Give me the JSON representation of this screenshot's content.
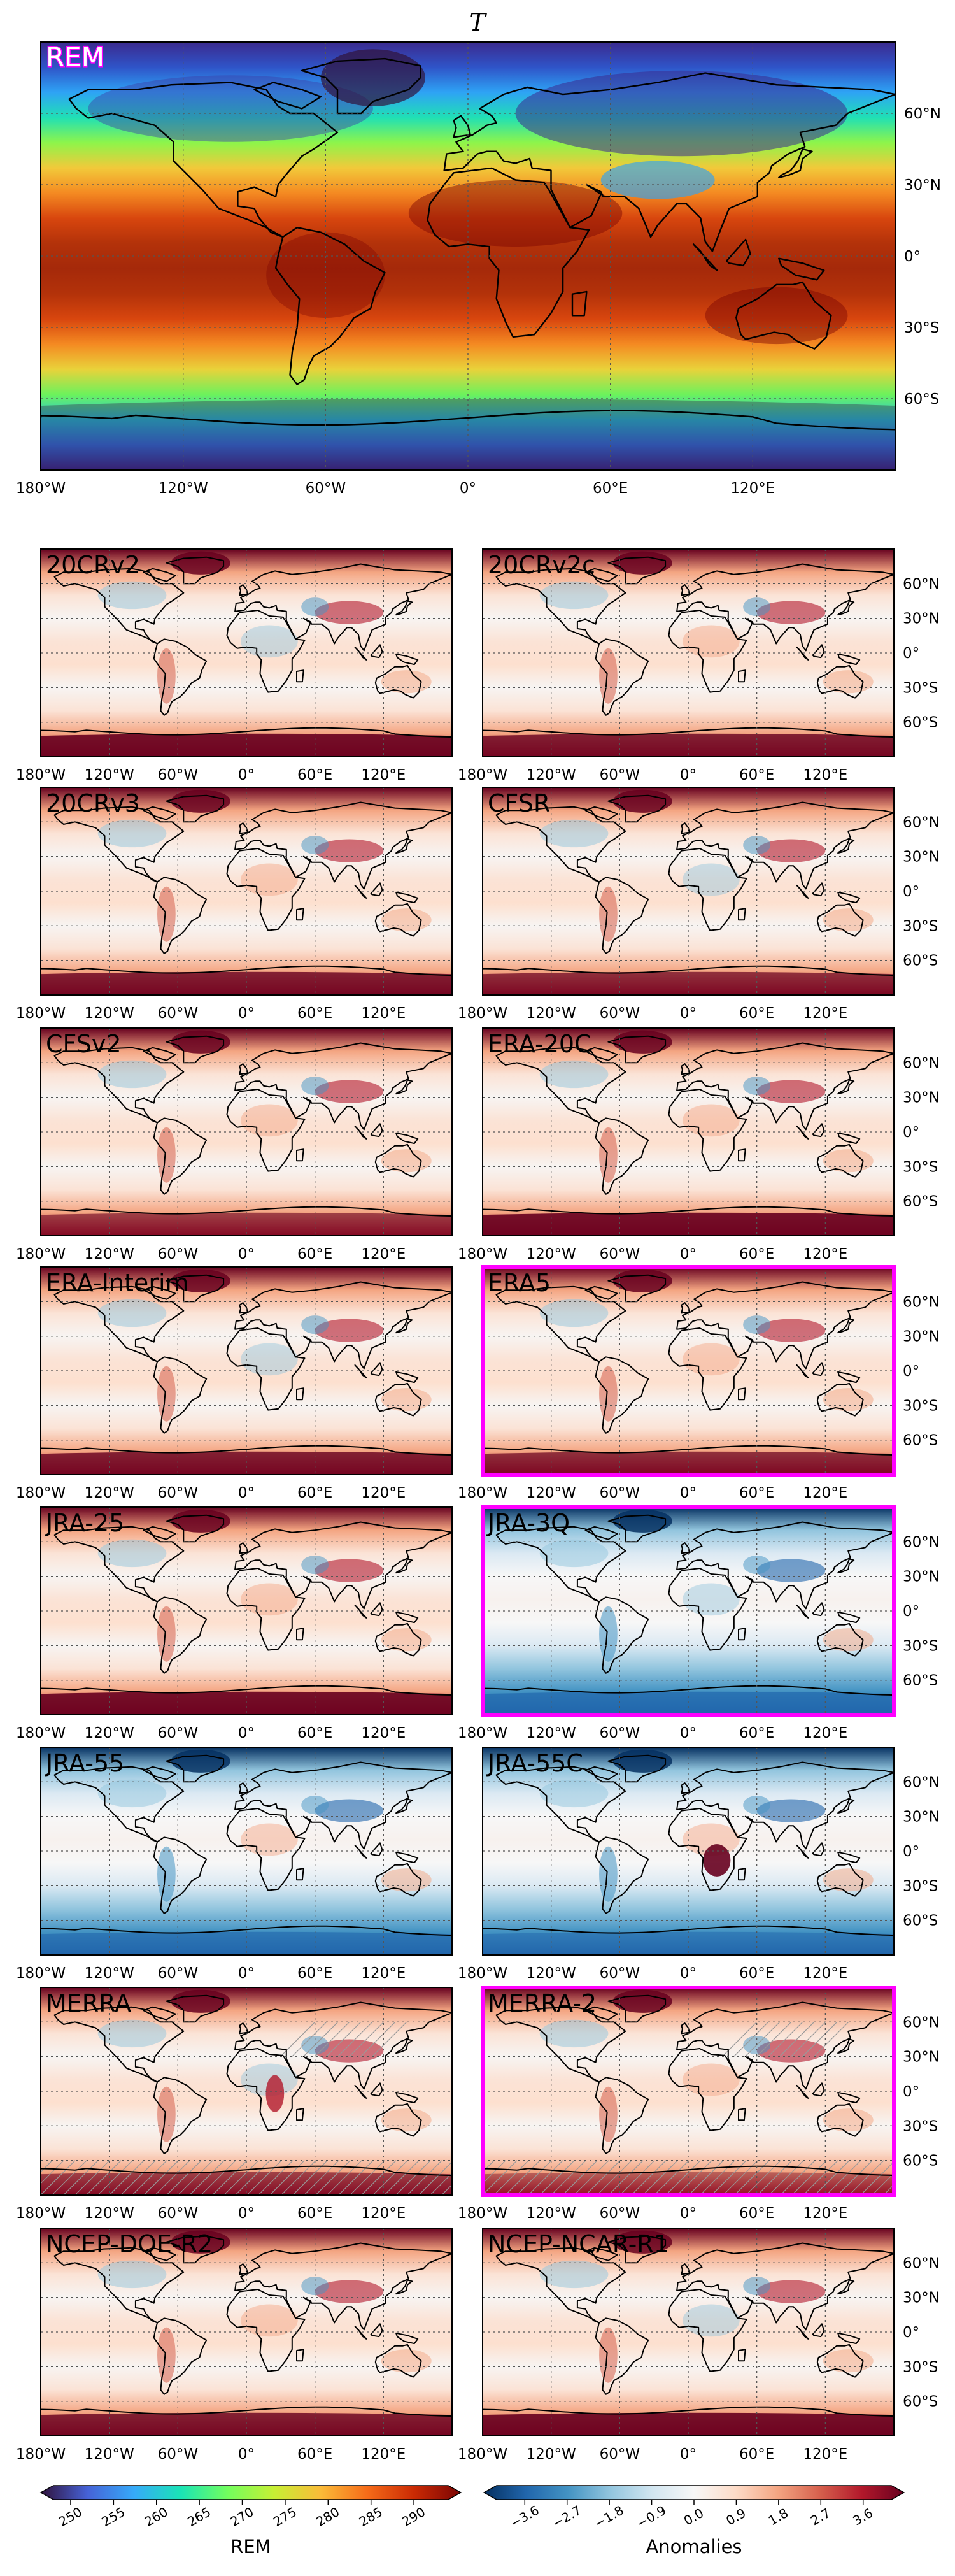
{
  "title": "T",
  "main_map": {
    "label": "REM",
    "lat_labels": [
      "60°N",
      "30°N",
      "0°",
      "30°S",
      "60°S"
    ],
    "lon_labels": [
      "180°W",
      "120°W",
      "60°W",
      "0°",
      "60°E",
      "120°E"
    ]
  },
  "lat_labels": [
    "60°N",
    "30°N",
    "0°",
    "30°S",
    "60°S"
  ],
  "lon_labels": [
    "180°W",
    "120°W",
    "60°W",
    "0°",
    "60°E",
    "120°E"
  ],
  "panels": [
    {
      "name": "20CRv2",
      "highlighted": false,
      "anomaly_level": 0.7
    },
    {
      "name": "20CRv2c",
      "highlighted": false,
      "anomaly_level": 0.6
    },
    {
      "name": "20CRv3",
      "highlighted": false,
      "anomaly_level": 0.6
    },
    {
      "name": "CFSR",
      "highlighted": false,
      "anomaly_level": 0.5
    },
    {
      "name": "CFSv2",
      "highlighted": false,
      "anomaly_level": 0.4
    },
    {
      "name": "ERA-20C",
      "highlighted": false,
      "anomaly_level": 0.7
    },
    {
      "name": "ERA-Interim",
      "highlighted": false,
      "anomaly_level": 0.6
    },
    {
      "name": "ERA5",
      "highlighted": true,
      "anomaly_level": 0.5
    },
    {
      "name": "JRA-25",
      "highlighted": false,
      "anomaly_level": 0.7
    },
    {
      "name": "JRA-3Q",
      "highlighted": true,
      "anomaly_level": -0.5
    },
    {
      "name": "JRA-55",
      "highlighted": false,
      "anomaly_level": -0.4
    },
    {
      "name": "JRA-55C",
      "highlighted": false,
      "anomaly_level": -0.3
    },
    {
      "name": "MERRA",
      "highlighted": false,
      "anomaly_level": 0.4
    },
    {
      "name": "MERRA-2",
      "highlighted": true,
      "anomaly_level": 0.2
    },
    {
      "name": "NCEP-DOE-R2",
      "highlighted": false,
      "anomaly_level": 0.6
    },
    {
      "name": "NCEP-NCAR-R1",
      "highlighted": false,
      "anomaly_level": 0.7
    }
  ],
  "colorbars": {
    "rem": {
      "label": "REM",
      "ticks": [
        "250",
        "255",
        "260",
        "265",
        "270",
        "275",
        "280",
        "285",
        "290"
      ],
      "min": 248,
      "max": 294
    },
    "anomalies": {
      "label": "Anomalies",
      "ticks": [
        "−3.6",
        "−2.7",
        "−1.8",
        "−0.9",
        "0.0",
        "0.9",
        "1.8",
        "2.7",
        "3.6"
      ],
      "min": -4.2,
      "max": 4.2
    }
  },
  "colors": {
    "highlight": "#ff00ff",
    "rem_cmap": [
      "#30123b",
      "#4662d7",
      "#36aaf9",
      "#1ae4b6",
      "#72fe5e",
      "#c7ef34",
      "#fabb38",
      "#f66b19",
      "#ca2a04",
      "#7a0403"
    ],
    "anom_cmap": [
      "#053061",
      "#2166ac",
      "#4393c3",
      "#92c5de",
      "#d1e5f0",
      "#f7f7f7",
      "#fddbc7",
      "#f4a582",
      "#d6604d",
      "#b2182b",
      "#67001f"
    ]
  }
}
